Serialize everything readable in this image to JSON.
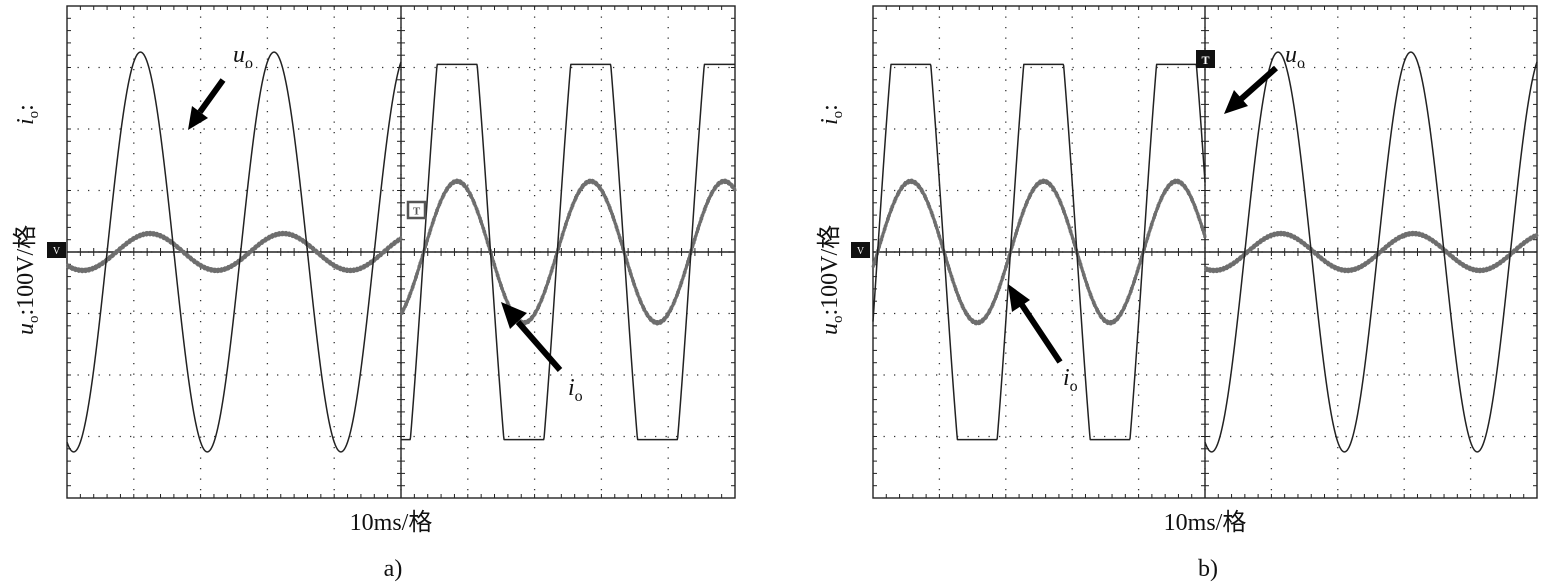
{
  "figure": {
    "panels": [
      {
        "id": "a",
        "caption": "a)",
        "xlabel": "10ms/格",
        "ylabel_main": "u",
        "ylabel_main_sub": "o",
        "ylabel_main_rest": ":100V/格",
        "ylabel_top": "i",
        "ylabel_top_sub": "o",
        "ylabel_top_rest": ":",
        "ground_marker": "V",
        "trigger_marker": "T",
        "annotations": [
          {
            "name": "u",
            "sub": "o"
          },
          {
            "name": "i",
            "sub": "o"
          }
        ]
      },
      {
        "id": "b",
        "caption": "b)",
        "xlabel": "10ms/格",
        "ylabel_main": "u",
        "ylabel_main_sub": "o",
        "ylabel_main_rest": ":100V/格",
        "ylabel_top": "i",
        "ylabel_top_sub": "o",
        "ylabel_top_rest": ":",
        "ground_marker": "V",
        "trigger_marker": "T",
        "annotations": [
          {
            "name": "u",
            "sub": "o"
          },
          {
            "name": "i",
            "sub": "o"
          }
        ]
      }
    ]
  },
  "chart_data": [
    {
      "type": "line",
      "panel": "a",
      "grid": true,
      "x_divisions": 10,
      "y_divisions": 8,
      "xlim": [
        0,
        100
      ],
      "x_unit": "ms",
      "ylim": [
        -4,
        4
      ],
      "series": [
        {
          "name": "u_o",
          "color": "#222222",
          "kind": "voltage",
          "segments": [
            {
              "x0": 0,
              "x1": 50,
              "period": 20,
              "x_peak": 31,
              "amp": 3.25,
              "flat": 1.0
            },
            {
              "x0": 50,
              "x1": 100,
              "period": 20,
              "x_peak": 58.4,
              "amp": 3.05,
              "flat": 1.7
            }
          ]
        },
        {
          "name": "i_o",
          "color": "#6e6e6e",
          "kind": "current",
          "segments": [
            {
              "x0": 0,
              "x1": 50,
              "period": 20,
              "x_peak": 32.4,
              "amp": 0.3,
              "flat": 1.0
            },
            {
              "x0": 50,
              "x1": 100,
              "period": 20,
              "x_peak": 58.4,
              "amp": 1.15,
              "flat": 1.0
            }
          ]
        }
      ]
    },
    {
      "type": "line",
      "panel": "b",
      "grid": true,
      "x_divisions": 10,
      "y_divisions": 8,
      "xlim": [
        0,
        100
      ],
      "x_unit": "ms",
      "ylim": [
        -4,
        4
      ],
      "series": [
        {
          "name": "u_o",
          "color": "#222222",
          "kind": "voltage",
          "segments": [
            {
              "x0": 0,
              "x1": 50,
              "period": 20,
              "x_peak": 25.7,
              "amp": 3.05,
              "flat": 1.7
            },
            {
              "x0": 50,
              "x1": 100,
              "period": 20,
              "x_peak": 61,
              "amp": 3.25,
              "flat": 1.0
            }
          ]
        },
        {
          "name": "i_o",
          "color": "#6e6e6e",
          "kind": "current",
          "segments": [
            {
              "x0": 0,
              "x1": 50,
              "period": 20,
              "x_peak": 25.7,
              "amp": 1.15,
              "flat": 1.0
            },
            {
              "x0": 50,
              "x1": 100,
              "period": 20,
              "x_peak": 61.4,
              "amp": 0.3,
              "flat": 1.0
            }
          ]
        }
      ]
    }
  ]
}
